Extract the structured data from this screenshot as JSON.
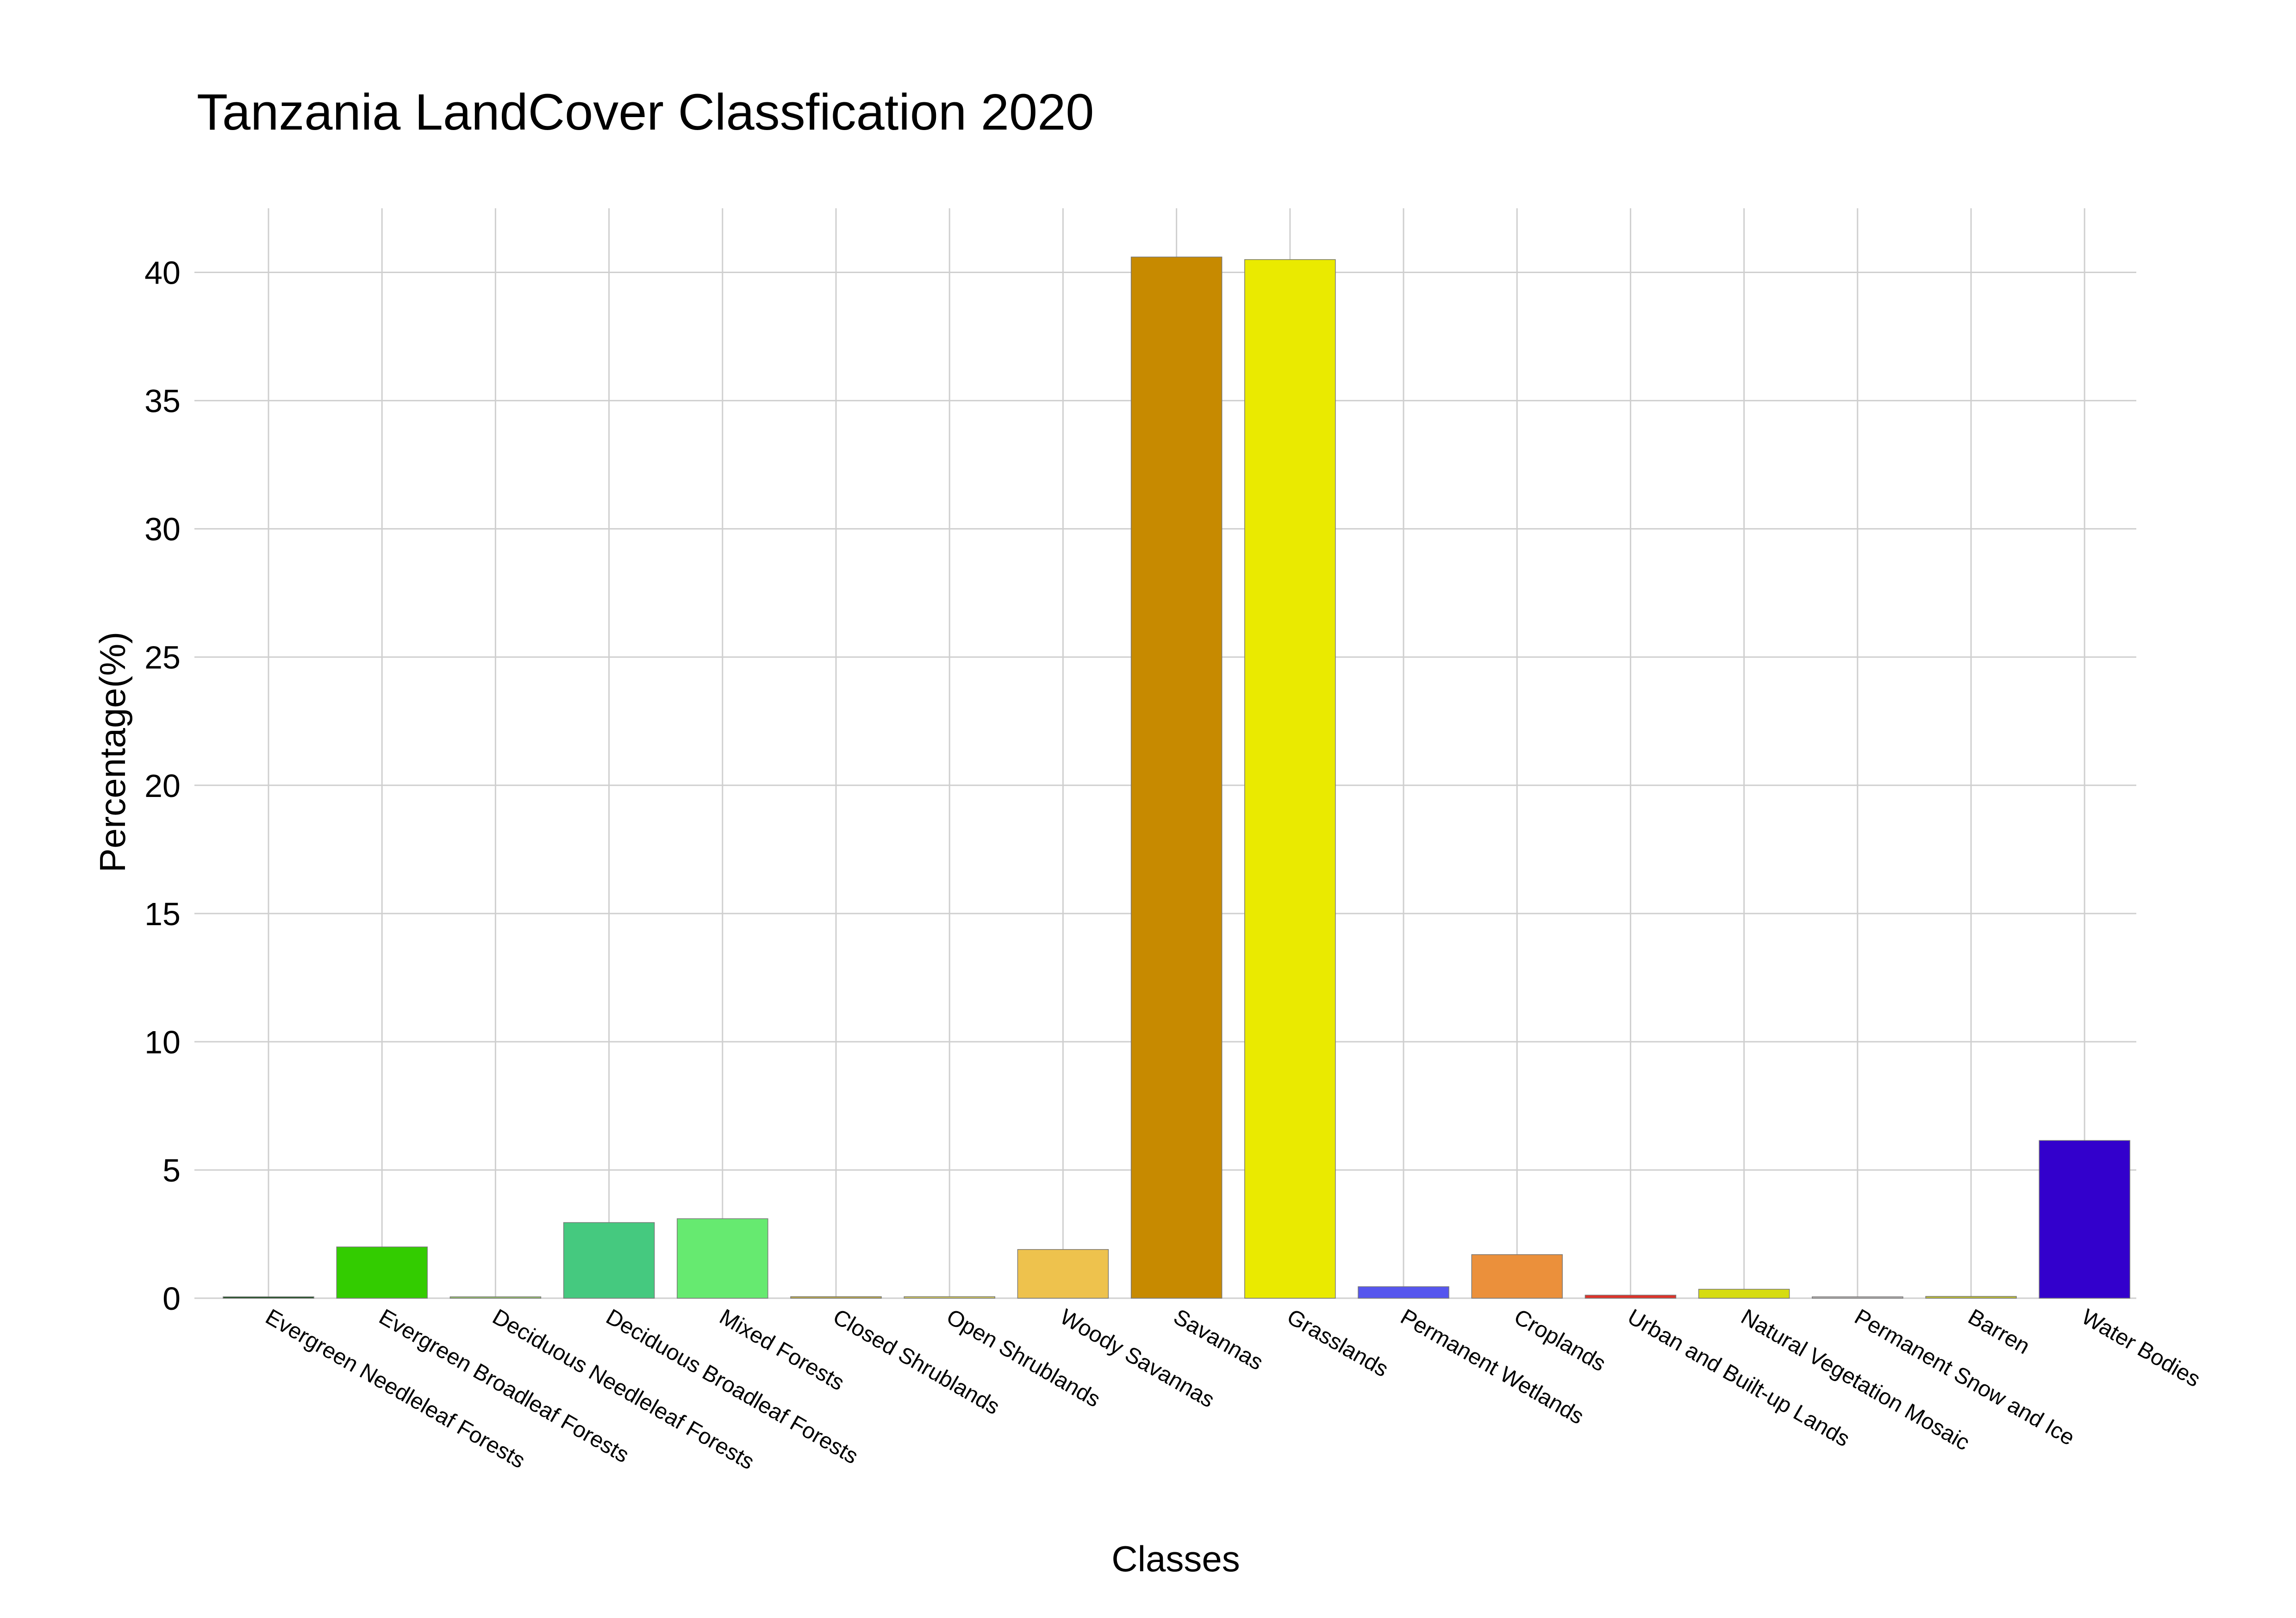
{
  "chart_data": {
    "type": "bar",
    "title": "Tanzania LandCover Classfication 2020",
    "xlabel": "Classes",
    "ylabel": "Percentage(%)",
    "ylim": [
      0,
      42.5
    ],
    "yticks": [
      0,
      5,
      10,
      15,
      20,
      25,
      30,
      35,
      40
    ],
    "grid": true,
    "legend": "none",
    "categories": [
      "Evergreen Needleleaf Forests",
      "Evergreen Broadleaf Forests",
      "Deciduous Needleleaf Forests",
      "Deciduous Broadleaf Forests",
      "Mixed Forests",
      "Closed Shrublands",
      "Open Shrublands",
      "Woody Savannas",
      "Savannas",
      "Grasslands",
      "Permanent Wetlands",
      "Croplands",
      "Urban and Built-up Lands",
      "Natural Vegetation Mosaic",
      "Permanent Snow and Ice",
      "Barren",
      "Water Bodies"
    ],
    "values": [
      0.02,
      2.0,
      0.01,
      2.95,
      3.1,
      0.06,
      0.06,
      1.9,
      40.6,
      40.5,
      0.45,
      1.7,
      0.12,
      0.35,
      0.01,
      0.07,
      6.15
    ],
    "colors": [
      "#05450a",
      "#33cc00",
      "#99cc66",
      "#45c97f",
      "#66ea70",
      "#c6b044",
      "#dcd159",
      "#eec24d",
      "#c78a00",
      "#eaea00",
      "#5656ee",
      "#eb903b",
      "#e0322a",
      "#d6dc12",
      "#bab5b5",
      "#c0c030",
      "#3300cc"
    ]
  }
}
